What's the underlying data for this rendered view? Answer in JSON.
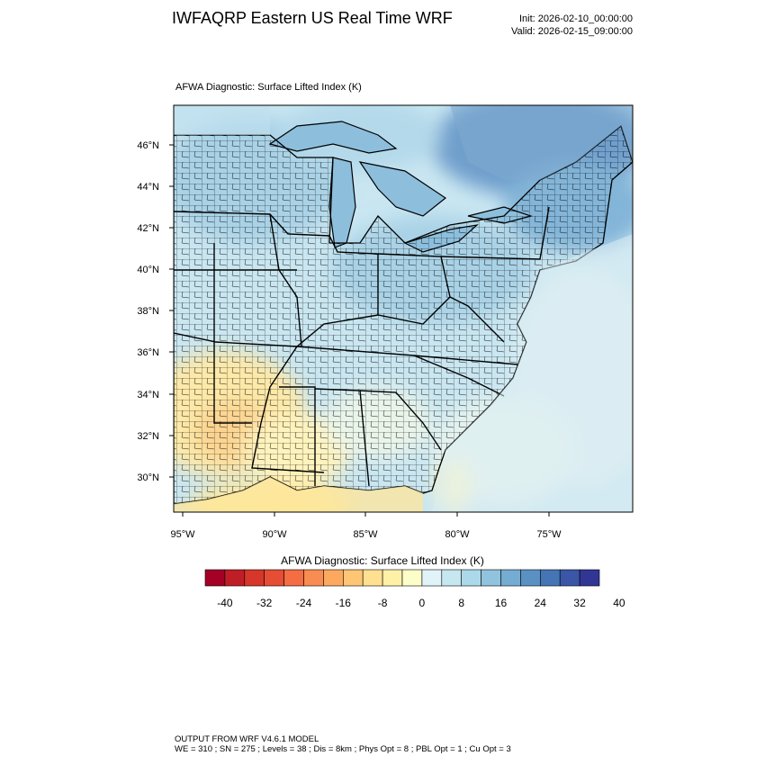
{
  "header": {
    "title": "IWFAQRP Eastern US Real Time WRF",
    "init": "Init: 2026-02-10_00:00:00",
    "valid": "Valid: 2026-02-15_09:00:00"
  },
  "map": {
    "subtitle": "AFWA Diagnostic: Surface Lifted Index   (K)",
    "lat_labels": [
      "46°N",
      "44°N",
      "42°N",
      "40°N",
      "38°N",
      "36°N",
      "34°N",
      "32°N",
      "30°N"
    ],
    "lon_labels": [
      "95°W",
      "90°W",
      "85°W",
      "80°W",
      "75°W"
    ]
  },
  "colorbar": {
    "title": "AFWA Diagnostic: Surface Lifted Index  (K)",
    "tick_labels": [
      "-40",
      "-32",
      "-24",
      "-16",
      "-8",
      "0",
      "8",
      "16",
      "24",
      "32",
      "40"
    ],
    "colors": [
      "#a50026",
      "#c01e27",
      "#d6372a",
      "#e54e34",
      "#f46d43",
      "#f88c51",
      "#fca85e",
      "#fdc574",
      "#fee090",
      "#fff0a8",
      "#fcfdc9",
      "#e0f3f8",
      "#c6e6f0",
      "#abd9e9",
      "#91c3de",
      "#74add1",
      "#5a91c3",
      "#4575b4",
      "#3b56a7",
      "#313695"
    ]
  },
  "footer": {
    "line1": "OUTPUT FROM WRF V4.6.1 MODEL",
    "line2": "WE = 310 ; SN = 275 ; Levels = 38 ; Dis = 8km ; Phys Opt = 8 ; PBL Opt = 1 ; Cu Opt = 3"
  }
}
